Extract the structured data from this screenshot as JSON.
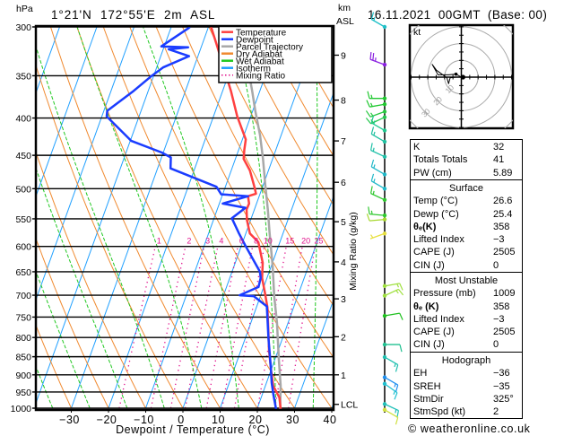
{
  "header": {
    "hpa_label": "hPa",
    "location": "1°21'N  172°55'E  2m  ASL",
    "km_label": "km",
    "asl_label": "ASL",
    "datetime": "16.11.2021  00GMT  (Base: 00)"
  },
  "chart_data": {
    "type": "line",
    "subtype": "skew-T log-p",
    "title": "1°21'N  172°55'E  2m  ASL",
    "xlabel": "Dewpoint / Temperature (°C)",
    "ylabel": "hPa",
    "y2label": "km ASL",
    "mixing_ratio_axis_label": "Mixing Ratio (g/kg)",
    "xlim_at_1000hpa": [
      -40,
      40
    ],
    "ylim": [
      1000,
      300
    ],
    "grid": true,
    "legend_position": "top-right",
    "x_ticks": [
      -30,
      -20,
      -10,
      0,
      10,
      20,
      30,
      40
    ],
    "x_tick_labels": [
      "−30",
      "−20",
      "−10",
      "0",
      "10",
      "20",
      "30",
      "40"
    ],
    "pressure_levels": [
      300,
      350,
      400,
      450,
      500,
      550,
      600,
      650,
      700,
      750,
      800,
      850,
      900,
      950,
      1000
    ],
    "km_ticks": [
      {
        "label": "9",
        "p": 328
      },
      {
        "label": "8",
        "p": 378
      },
      {
        "label": "7",
        "p": 430
      },
      {
        "label": "6",
        "p": 490
      },
      {
        "label": "5",
        "p": 555
      },
      {
        "label": "4",
        "p": 630
      },
      {
        "label": "3",
        "p": 708
      },
      {
        "label": "2",
        "p": 798
      },
      {
        "label": "1",
        "p": 900
      },
      {
        "label": "LCL",
        "p": 988
      }
    ],
    "legend": [
      {
        "label": "Temperature",
        "color": "#ff4040",
        "style": "solid"
      },
      {
        "label": "Dewpoint",
        "color": "#1a3cff",
        "style": "solid"
      },
      {
        "label": "Parcel Trajectory",
        "color": "#a8a8a8",
        "style": "solid"
      },
      {
        "label": "Dry Adiabat",
        "color": "#f08a30",
        "style": "solid"
      },
      {
        "label": "Wet Adiabat",
        "color": "#20c820",
        "style": "solid"
      },
      {
        "label": "Isotherm",
        "color": "#20a0ff",
        "style": "solid"
      },
      {
        "label": "Mixing Ratio",
        "color": "#e0108c",
        "style": "dotted"
      }
    ],
    "series": [
      {
        "name": "Temperature",
        "color": "#ff4040",
        "points_p_T": [
          [
            1009,
            26.6
          ],
          [
            967,
            24.9
          ],
          [
            932,
            22.1
          ],
          [
            889,
            20.1
          ],
          [
            832,
            17.5
          ],
          [
            779,
            15.3
          ],
          [
            728,
            13.0
          ],
          [
            695,
            10.9
          ],
          [
            663,
            8.7
          ],
          [
            632,
            7.4
          ],
          [
            592,
            4.2
          ],
          [
            576,
            1.1
          ],
          [
            552,
            -1.0
          ],
          [
            534,
            -2.1
          ],
          [
            524,
            -2.0
          ],
          [
            512,
            -3.0
          ],
          [
            508,
            -1.1
          ],
          [
            497,
            -2.2
          ],
          [
            472,
            -5.0
          ],
          [
            455,
            -7.8
          ],
          [
            442,
            -8.5
          ],
          [
            428,
            -9.1
          ],
          [
            398,
            -13.6
          ],
          [
            367,
            -17.8
          ],
          [
            320,
            -25.6
          ],
          [
            300,
            -29.3
          ]
        ]
      },
      {
        "name": "Dewpoint",
        "color": "#1a3cff",
        "points_p_T": [
          [
            1009,
            25.4
          ],
          [
            958,
            23.0
          ],
          [
            923,
            21.4
          ],
          [
            882,
            19.8
          ],
          [
            801,
            16.2
          ],
          [
            725,
            12.7
          ],
          [
            702,
            8.2
          ],
          [
            700,
            4.3
          ],
          [
            682,
            8.6
          ],
          [
            663,
            8.3
          ],
          [
            650,
            7.5
          ],
          [
            598,
            1.0
          ],
          [
            576,
            -1.8
          ],
          [
            549,
            -5.2
          ],
          [
            531,
            -2.6
          ],
          [
            524,
            -9.1
          ],
          [
            512,
            -3.0
          ],
          [
            509,
            -10.4
          ],
          [
            497,
            -12.4
          ],
          [
            469,
            -26.5
          ],
          [
            453,
            -27.5
          ],
          [
            446,
            -30.4
          ],
          [
            430,
            -39.7
          ],
          [
            398,
            -48.7
          ],
          [
            391,
            -49.1
          ],
          [
            367,
            -43.9
          ],
          [
            351,
            -40.7
          ],
          [
            341,
            -38.3
          ],
          [
            329,
            -32.4
          ],
          [
            322,
            -38.5
          ],
          [
            320,
            -33.5
          ],
          [
            319,
            -40.8
          ],
          [
            301,
            -35.2
          ],
          [
            300,
            -35.0
          ]
        ]
      },
      {
        "name": "Parcel Trajectory",
        "color": "#a8a8a8",
        "points_p_T": [
          [
            1009,
            26.4
          ],
          [
            932,
            24.1
          ],
          [
            858,
            21.1
          ],
          [
            763,
            17.0
          ],
          [
            702,
            13.7
          ],
          [
            639,
            10.4
          ],
          [
            576,
            6.4
          ],
          [
            534,
            3.6
          ],
          [
            495,
            0.6
          ],
          [
            455,
            -2.6
          ],
          [
            422,
            -5.7
          ],
          [
            391,
            -9.3
          ],
          [
            367,
            -12.1
          ],
          [
            330,
            -17.0
          ],
          [
            300,
            -21.5
          ]
        ]
      }
    ],
    "isotherms_c": [
      -80,
      -70,
      -60,
      -50,
      -40,
      -30,
      -20,
      -10,
      0,
      10,
      20,
      30,
      40
    ],
    "dry_adiabats_theta_c": [
      -40,
      -30,
      -20,
      -10,
      0,
      10,
      20,
      30,
      40,
      50,
      60,
      70,
      80,
      90,
      100,
      110,
      120
    ],
    "wet_adiabats_theta_w_c": [
      -35,
      -25,
      -15,
      -5,
      5,
      15,
      25,
      35
    ],
    "mixing_ratio_g_kg": [
      1,
      2,
      3,
      4,
      6,
      8,
      10,
      15,
      20,
      25
    ],
    "mixing_ratio_labels": [
      "1",
      "2",
      "3",
      "4",
      "6",
      "8",
      "10",
      "15",
      "20",
      "25"
    ],
    "mixing_ratio_top_hpa": 600,
    "wind_barbs": [
      {
        "p": 300,
        "dir": 300,
        "spd": 15,
        "color": "#20c0c8"
      },
      {
        "p": 338,
        "dir": 290,
        "spd": 25,
        "color": "#8a20e0"
      },
      {
        "p": 376,
        "dir": 270,
        "spd": 15,
        "color": "#20c830"
      },
      {
        "p": 383,
        "dir": 260,
        "spd": 15,
        "color": "#20c830"
      },
      {
        "p": 392,
        "dir": 250,
        "spd": 15,
        "color": "#28c840"
      },
      {
        "p": 399,
        "dir": 245,
        "spd": 15,
        "color": "#28c850"
      },
      {
        "p": 416,
        "dir": 300,
        "spd": 15,
        "color": "#20c890"
      },
      {
        "p": 431,
        "dir": 300,
        "spd": 15,
        "color": "#20c0a0"
      },
      {
        "p": 452,
        "dir": 295,
        "spd": 15,
        "color": "#20c0a8"
      },
      {
        "p": 478,
        "dir": 300,
        "spd": 15,
        "color": "#20b8c8"
      },
      {
        "p": 500,
        "dir": 300,
        "spd": 15,
        "color": "#20b8c8"
      },
      {
        "p": 518,
        "dir": 295,
        "spd": 15,
        "color": "#30c830"
      },
      {
        "p": 544,
        "dir": 275,
        "spd": 15,
        "color": "#30c830"
      },
      {
        "p": 551,
        "dir": 265,
        "spd": 10,
        "color": "#a8d830"
      },
      {
        "p": 576,
        "dir": 250,
        "spd": 5,
        "color": "#e8e040"
      },
      {
        "p": 680,
        "dir": 80,
        "spd": 15,
        "color": "#a0e040"
      },
      {
        "p": 701,
        "dir": 65,
        "spd": 15,
        "color": "#a0e040"
      },
      {
        "p": 747,
        "dir": 80,
        "spd": 10,
        "color": "#20c020"
      },
      {
        "p": 818,
        "dir": 90,
        "spd": 10,
        "color": "#20c090"
      },
      {
        "p": 851,
        "dir": 120,
        "spd": 15,
        "color": "#20c0b0"
      },
      {
        "p": 907,
        "dir": 120,
        "spd": 15,
        "color": "#2090f0"
      },
      {
        "p": 926,
        "dir": 125,
        "spd": 15,
        "color": "#20c0d0"
      },
      {
        "p": 987,
        "dir": 115,
        "spd": 15,
        "color": "#20c0b8"
      },
      {
        "p": 1005,
        "dir": 120,
        "spd": 10,
        "color": "#d0e040"
      }
    ],
    "hodograph": {
      "unit_label": "kt",
      "rings_kt": [
        10,
        20,
        30,
        40
      ],
      "ring_labels": [
        "10",
        "20",
        "30"
      ],
      "trace_uv_kt": [
        [
          0,
          0
        ],
        [
          -3.2,
          1.8
        ],
        [
          -7.6,
          1.4
        ],
        [
          -13.9,
          1.4
        ],
        [
          -17.4,
          7.6
        ],
        [
          -14.8,
          4.1
        ],
        [
          -8.6,
          -0.4
        ],
        [
          -7.6,
          -3.9
        ],
        [
          -6.7,
          -0.4
        ],
        [
          -3.2,
          0
        ],
        [
          0,
          0
        ]
      ],
      "marker_uv_kt": [
        -3.2,
        1.8
      ],
      "storm_marker_uv_kt": [
        1.0,
        0
      ]
    }
  },
  "indices": {
    "general": [
      {
        "label": "K",
        "value": "32"
      },
      {
        "label": "Totals Totals",
        "value": "41"
      },
      {
        "label": "PW (cm)",
        "value": "5.89"
      }
    ],
    "surface": {
      "title": "Surface",
      "rows": [
        {
          "label": "Temp (°C)",
          "value": "26.6"
        },
        {
          "label": "Dewp (°C)",
          "value": "25.4"
        },
        {
          "label": "θₑ(K)",
          "value": "358"
        },
        {
          "label": "Lifted Index",
          "value": "−3"
        },
        {
          "label": "CAPE (J)",
          "value": "2505"
        },
        {
          "label": "CIN (J)",
          "value": "0"
        }
      ]
    },
    "most_unstable": {
      "title": "Most Unstable",
      "rows": [
        {
          "label": "Pressure (mb)",
          "value": "1009"
        },
        {
          "label": "θₑ (K)",
          "value": "358"
        },
        {
          "label": "Lifted Index",
          "value": "−3"
        },
        {
          "label": "CAPE (J)",
          "value": "2505"
        },
        {
          "label": "CIN (J)",
          "value": "0"
        }
      ]
    },
    "hodograph": {
      "title": "Hodograph",
      "rows": [
        {
          "label": "EH",
          "value": "−36"
        },
        {
          "label": "SREH",
          "value": "−35"
        },
        {
          "label": "StmDir",
          "value": "325°"
        },
        {
          "label": "StmSpd (kt)",
          "value": "2"
        }
      ]
    }
  },
  "footer": {
    "copyright": "© weatheronline.co.uk"
  }
}
